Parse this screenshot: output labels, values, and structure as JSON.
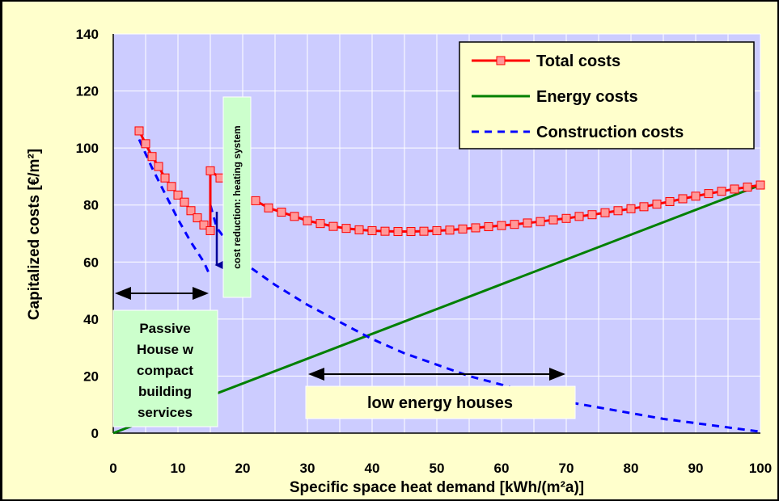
{
  "colors": {
    "background": "#ffffcc",
    "plot_area": "#ccccff",
    "grid": "#ffffff",
    "total": "#ff0000",
    "total_marker": "#ff9999",
    "energy": "#008000",
    "construction": "#0000ff",
    "arrow": "#000000",
    "reduction_arrow": "#000099",
    "annotation_box": "#ccffcc",
    "lowenergy_box": "#ffffcc"
  },
  "chart_data": {
    "type": "line",
    "title": "",
    "xlabel": "Specific space  heat demand [kWh/(m²a)]",
    "ylabel": "Capitalized costs [€/m²]",
    "xlim": [
      0,
      100
    ],
    "ylim": [
      0,
      140
    ],
    "x_ticks": [
      "0",
      "10",
      "20",
      "30",
      "40",
      "50",
      "60",
      "70",
      "80",
      "90",
      "100"
    ],
    "y_ticks": [
      "0",
      "20",
      "40",
      "60",
      "80",
      "100",
      "120",
      "140"
    ],
    "grid": true,
    "legend_position": "top-right",
    "series": [
      {
        "name": "Total costs",
        "style": "line-with-square-markers",
        "segments": [
          {
            "x": [
              4,
              5,
              6,
              7,
              8,
              9,
              10,
              11,
              12,
              13,
              14,
              15
            ],
            "y": [
              106,
              101.5,
              97,
              93.5,
              89.5,
              86.5,
              83.5,
              81,
              78,
              75.5,
              73,
              71
            ]
          },
          {
            "x": [
              15,
              16.5,
              18,
              20,
              22,
              24,
              26,
              28,
              30,
              32,
              34,
              36,
              38,
              40,
              42,
              44,
              46,
              48,
              50,
              52,
              54,
              56,
              58,
              60,
              62,
              64,
              66,
              68,
              70,
              72,
              74,
              76,
              78,
              80,
              82,
              84,
              86,
              88,
              90,
              92,
              94,
              96,
              98,
              100
            ],
            "y": [
              92,
              89.5,
              87,
              84,
              81.5,
              79,
              77.5,
              76,
              74.5,
              73.5,
              72.5,
              71.8,
              71.3,
              71,
              70.8,
              70.7,
              70.7,
              70.8,
              71,
              71.2,
              71.6,
              72,
              72.4,
              72.8,
              73.2,
              73.7,
              74.2,
              74.8,
              75.3,
              76,
              76.6,
              77.3,
              78,
              78.7,
              79.4,
              80.3,
              81.2,
              82.2,
              83.1,
              84,
              84.8,
              85.6,
              86.3,
              87
            ]
          }
        ]
      },
      {
        "name": "Energy costs",
        "style": "solid",
        "x": [
          0,
          100
        ],
        "y": [
          0,
          87
        ]
      },
      {
        "name": "Construction costs",
        "style": "dashed",
        "segments": [
          {
            "x": [
              4,
              6,
              8,
              10,
              12,
              14,
              15
            ],
            "y": [
              103,
              93,
              84,
              75,
              67,
              60,
              55
            ]
          },
          {
            "x": [
              15,
              16,
              20,
              25,
              30,
              35,
              40,
              45,
              50,
              55,
              60,
              65,
              70,
              75,
              80,
              85,
              90,
              95,
              100
            ],
            "y": [
              80,
              72,
              60,
              52,
              45,
              39,
              33,
              28,
              24,
              20,
              17,
              14,
              11,
              9,
              7,
              5,
              3.5,
              2,
              0.5
            ]
          }
        ]
      }
    ],
    "annotations": {
      "passive_house_lines": [
        "Passive",
        "House w",
        "compact",
        "building",
        "services"
      ],
      "low_energy": "low energy houses",
      "cost_reduction": "cost reduction: heating system"
    }
  }
}
